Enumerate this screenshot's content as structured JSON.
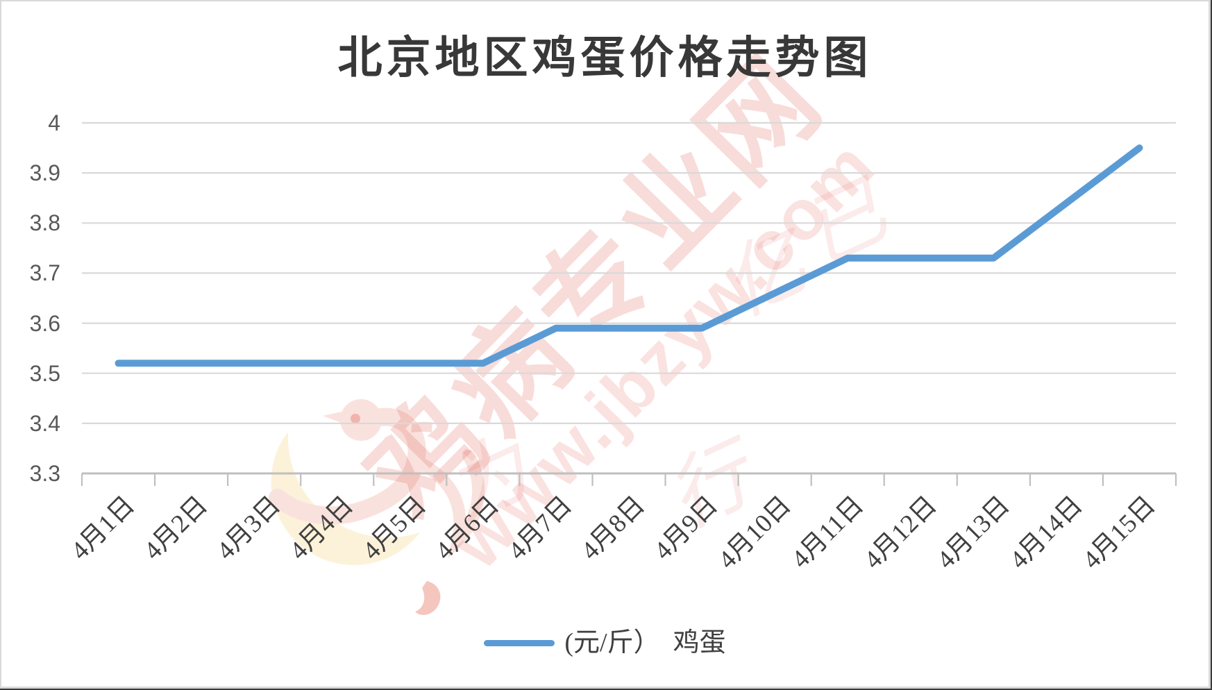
{
  "title": "北京地区鸡蛋价格走势图",
  "legend": {
    "label": "(元/斤）　鸡蛋"
  },
  "watermark": {
    "brand": "鸡病专业网",
    "url": "www.jbzyw.com",
    "script_chars": [
      "为",
      "行",
      "亿",
      "已"
    ]
  },
  "chart_data": {
    "type": "line",
    "title": "北京地区鸡蛋价格走势图",
    "categories": [
      "4月1日",
      "4月2日",
      "4月3日",
      "4月4日",
      "4月5日",
      "4月6日",
      "4月7日",
      "4月8日",
      "4月9日",
      "4月10日",
      "4月11日",
      "4月12日",
      "4月13日",
      "4月14日",
      "4月15日"
    ],
    "series": [
      {
        "name": "(元/斤）　鸡蛋",
        "color": "#5b9bd5",
        "values": [
          3.52,
          3.52,
          3.52,
          3.52,
          3.52,
          3.52,
          3.59,
          3.59,
          3.59,
          3.66,
          3.73,
          3.73,
          3.73,
          3.84,
          3.95
        ]
      }
    ],
    "xlabel": "",
    "ylabel": "",
    "ylim": [
      3.3,
      4.0
    ],
    "yticks": [
      3.3,
      3.4,
      3.5,
      3.6,
      3.7,
      3.8,
      3.9,
      4.0
    ],
    "ytick_labels": [
      "3.3",
      "3.4",
      "3.5",
      "3.6",
      "3.7",
      "3.8",
      "3.9",
      "4"
    ],
    "grid": "horizontal",
    "gridline_color": "#d9d9d9",
    "axis_color": "#bfbfbf",
    "legend_position": "bottom",
    "x_label_rotation": -45
  }
}
